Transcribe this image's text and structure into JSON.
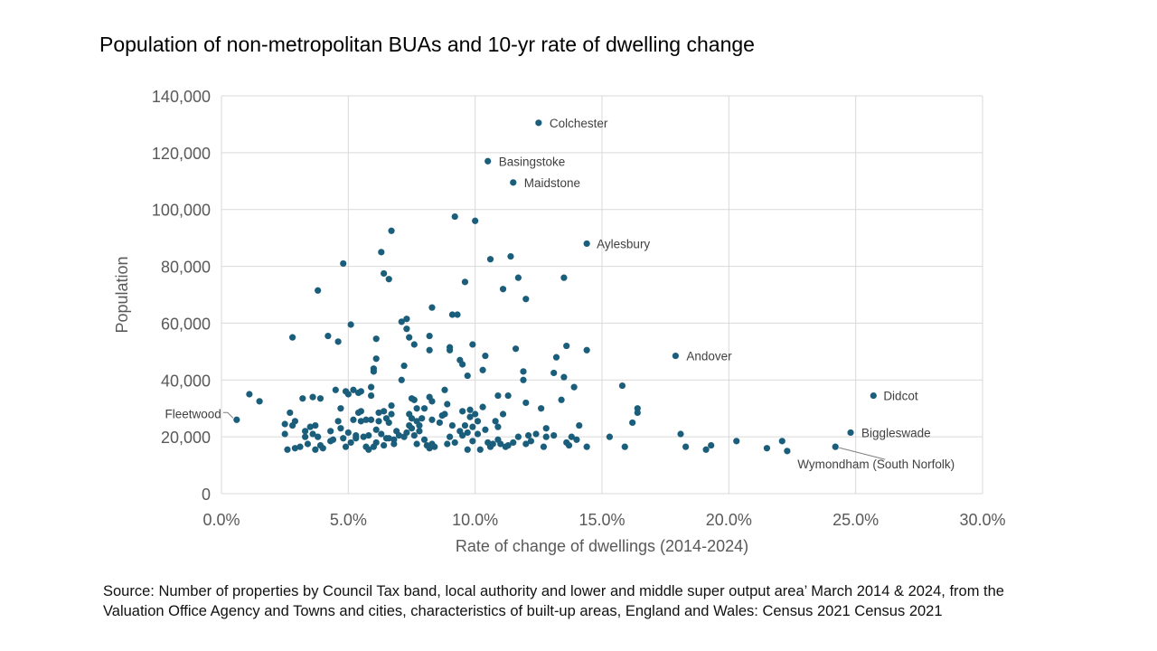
{
  "title": "Population of non-metropolitan BUAs and 10-yr rate of dwelling change",
  "source": "Source: Number of properties by Council Tax band, local authority and lower and middle super output area’ March 2014 & 2024, from the Valuation Office Agency and Towns and cities, characteristics of built-up areas, England and Wales: Census 2021  Census 2021",
  "colors": {
    "point": "#1b5e7b",
    "grid": "#d9d9d9",
    "axis_text": "#595959",
    "label_text": "#404040"
  },
  "chart_data": {
    "type": "scatter",
    "title": "Population of non-metropolitan BUAs and 10-yr rate of dwelling change",
    "xlabel": "Rate of change of dwellings (2014-2024)",
    "ylabel": "Population",
    "xlim": [
      0,
      0.3
    ],
    "ylim": [
      0,
      140000
    ],
    "x_ticks": [
      0,
      0.05,
      0.1,
      0.15,
      0.2,
      0.25,
      0.3
    ],
    "x_tick_labels": [
      "0.0%",
      "5.0%",
      "10.0%",
      "15.0%",
      "20.0%",
      "25.0%",
      "30.0%"
    ],
    "y_ticks": [
      0,
      20000,
      40000,
      60000,
      80000,
      100000,
      120000,
      140000
    ],
    "y_tick_labels": [
      "0",
      "20,000",
      "40,000",
      "60,000",
      "80,000",
      "100,000",
      "120,000",
      "140,000"
    ],
    "grid": true,
    "legend": "none",
    "labeled_points": [
      {
        "name": "Colchester",
        "x": 0.125,
        "y": 130500
      },
      {
        "name": "Basingstoke",
        "x": 0.105,
        "y": 117000
      },
      {
        "name": "Maidstone",
        "x": 0.115,
        "y": 109500
      },
      {
        "name": "Aylesbury",
        "x": 0.144,
        "y": 88000
      },
      {
        "name": "Andover",
        "x": 0.179,
        "y": 48500
      },
      {
        "name": "Didcot",
        "x": 0.257,
        "y": 34500
      },
      {
        "name": "Biggleswade",
        "x": 0.248,
        "y": 21500
      },
      {
        "name": "Wymondham (South Norfolk)",
        "x": 0.242,
        "y": 16500
      },
      {
        "name": "Fleetwood",
        "x": 0.006,
        "y": 26000
      }
    ],
    "points": [
      [
        0.011,
        35000
      ],
      [
        0.015,
        32500
      ],
      [
        0.025,
        24500
      ],
      [
        0.025,
        21000
      ],
      [
        0.026,
        15500
      ],
      [
        0.027,
        28500
      ],
      [
        0.028,
        55000
      ],
      [
        0.028,
        24000
      ],
      [
        0.029,
        16000
      ],
      [
        0.029,
        25500
      ],
      [
        0.031,
        16500
      ],
      [
        0.032,
        33500
      ],
      [
        0.033,
        22000
      ],
      [
        0.033,
        20000
      ],
      [
        0.034,
        17500
      ],
      [
        0.035,
        23500
      ],
      [
        0.036,
        34000
      ],
      [
        0.036,
        21000
      ],
      [
        0.037,
        15500
      ],
      [
        0.037,
        24000
      ],
      [
        0.038,
        71500
      ],
      [
        0.038,
        20000
      ],
      [
        0.039,
        33500
      ],
      [
        0.039,
        17000
      ],
      [
        0.04,
        16000
      ],
      [
        0.042,
        55500
      ],
      [
        0.043,
        22000
      ],
      [
        0.043,
        18500
      ],
      [
        0.044,
        19000
      ],
      [
        0.045,
        36500
      ],
      [
        0.046,
        53500
      ],
      [
        0.046,
        25500
      ],
      [
        0.047,
        23000
      ],
      [
        0.047,
        30000
      ],
      [
        0.048,
        81000
      ],
      [
        0.048,
        19500
      ],
      [
        0.049,
        36000
      ],
      [
        0.049,
        16500
      ],
      [
        0.05,
        35000
      ],
      [
        0.05,
        21500
      ],
      [
        0.051,
        59500
      ],
      [
        0.051,
        18000
      ],
      [
        0.052,
        36500
      ],
      [
        0.052,
        26000
      ],
      [
        0.053,
        20500
      ],
      [
        0.053,
        19500
      ],
      [
        0.054,
        35500
      ],
      [
        0.054,
        28500
      ],
      [
        0.055,
        36000
      ],
      [
        0.055,
        29000
      ],
      [
        0.055,
        25500
      ],
      [
        0.056,
        20000
      ],
      [
        0.057,
        16500
      ],
      [
        0.057,
        26000
      ],
      [
        0.058,
        20500
      ],
      [
        0.058,
        15500
      ],
      [
        0.059,
        37500
      ],
      [
        0.059,
        34500
      ],
      [
        0.059,
        26000
      ],
      [
        0.06,
        44000
      ],
      [
        0.06,
        43000
      ],
      [
        0.06,
        16500
      ],
      [
        0.061,
        54500
      ],
      [
        0.061,
        47500
      ],
      [
        0.061,
        22500
      ],
      [
        0.061,
        18000
      ],
      [
        0.062,
        28500
      ],
      [
        0.062,
        25500
      ],
      [
        0.063,
        85000
      ],
      [
        0.063,
        21000
      ],
      [
        0.064,
        77500
      ],
      [
        0.064,
        29000
      ],
      [
        0.064,
        17000
      ],
      [
        0.065,
        26500
      ],
      [
        0.065,
        19500
      ],
      [
        0.066,
        75500
      ],
      [
        0.066,
        25000
      ],
      [
        0.066,
        19500
      ],
      [
        0.067,
        92500
      ],
      [
        0.067,
        31000
      ],
      [
        0.067,
        28000
      ],
      [
        0.068,
        19000
      ],
      [
        0.068,
        17500
      ],
      [
        0.069,
        22000
      ],
      [
        0.07,
        20500
      ],
      [
        0.071,
        60500
      ],
      [
        0.071,
        40000
      ],
      [
        0.072,
        45000
      ],
      [
        0.072,
        20000
      ],
      [
        0.073,
        61500
      ],
      [
        0.073,
        58000
      ],
      [
        0.073,
        21500
      ],
      [
        0.074,
        55000
      ],
      [
        0.074,
        28000
      ],
      [
        0.074,
        24000
      ],
      [
        0.075,
        33500
      ],
      [
        0.075,
        26500
      ],
      [
        0.075,
        23000
      ],
      [
        0.076,
        52500
      ],
      [
        0.076,
        33000
      ],
      [
        0.076,
        20500
      ],
      [
        0.077,
        30000
      ],
      [
        0.077,
        25500
      ],
      [
        0.077,
        17500
      ],
      [
        0.078,
        24000
      ],
      [
        0.078,
        22000
      ],
      [
        0.079,
        26500
      ],
      [
        0.08,
        30000
      ],
      [
        0.08,
        19000
      ],
      [
        0.081,
        17000
      ],
      [
        0.082,
        55500
      ],
      [
        0.082,
        50500
      ],
      [
        0.082,
        34000
      ],
      [
        0.082,
        16000
      ],
      [
        0.083,
        65500
      ],
      [
        0.083,
        26000
      ],
      [
        0.083,
        32500
      ],
      [
        0.083,
        17500
      ],
      [
        0.084,
        16500
      ],
      [
        0.086,
        25000
      ],
      [
        0.087,
        27500
      ],
      [
        0.088,
        36500
      ],
      [
        0.088,
        28000
      ],
      [
        0.089,
        31500
      ],
      [
        0.089,
        17500
      ],
      [
        0.09,
        50500
      ],
      [
        0.09,
        51500
      ],
      [
        0.09,
        20000
      ],
      [
        0.091,
        63000
      ],
      [
        0.091,
        24000
      ],
      [
        0.092,
        97500
      ],
      [
        0.092,
        18000
      ],
      [
        0.093,
        63000
      ],
      [
        0.094,
        22000
      ],
      [
        0.094,
        47000
      ],
      [
        0.095,
        45500
      ],
      [
        0.095,
        29000
      ],
      [
        0.095,
        20500
      ],
      [
        0.096,
        74500
      ],
      [
        0.096,
        24000
      ],
      [
        0.097,
        41500
      ],
      [
        0.097,
        21500
      ],
      [
        0.097,
        15500
      ],
      [
        0.098,
        29500
      ],
      [
        0.098,
        27000
      ],
      [
        0.099,
        52500
      ],
      [
        0.099,
        23500
      ],
      [
        0.099,
        18500
      ],
      [
        0.1,
        96000
      ],
      [
        0.1,
        28000
      ],
      [
        0.101,
        25500
      ],
      [
        0.101,
        21000
      ],
      [
        0.102,
        15500
      ],
      [
        0.103,
        43500
      ],
      [
        0.103,
        30500
      ],
      [
        0.104,
        48500
      ],
      [
        0.104,
        22500
      ],
      [
        0.105,
        18000
      ],
      [
        0.106,
        82500
      ],
      [
        0.106,
        16500
      ],
      [
        0.107,
        17500
      ],
      [
        0.108,
        25500
      ],
      [
        0.109,
        34500
      ],
      [
        0.109,
        23500
      ],
      [
        0.109,
        19000
      ],
      [
        0.11,
        17500
      ],
      [
        0.111,
        72000
      ],
      [
        0.111,
        28000
      ],
      [
        0.112,
        16500
      ],
      [
        0.113,
        34500
      ],
      [
        0.113,
        17000
      ],
      [
        0.114,
        83500
      ],
      [
        0.115,
        18000
      ],
      [
        0.116,
        51000
      ],
      [
        0.117,
        20000
      ],
      [
        0.117,
        76000
      ],
      [
        0.119,
        43000
      ],
      [
        0.119,
        40000
      ],
      [
        0.12,
        68500
      ],
      [
        0.12,
        32000
      ],
      [
        0.12,
        17500
      ],
      [
        0.121,
        20500
      ],
      [
        0.122,
        18500
      ],
      [
        0.124,
        21000
      ],
      [
        0.126,
        30000
      ],
      [
        0.127,
        16500
      ],
      [
        0.128,
        23000
      ],
      [
        0.128,
        20000
      ],
      [
        0.131,
        42500
      ],
      [
        0.131,
        20500
      ],
      [
        0.132,
        48000
      ],
      [
        0.134,
        33000
      ],
      [
        0.135,
        76000
      ],
      [
        0.135,
        41000
      ],
      [
        0.136,
        52000
      ],
      [
        0.136,
        18000
      ],
      [
        0.137,
        17000
      ],
      [
        0.138,
        20000
      ],
      [
        0.139,
        37500
      ],
      [
        0.14,
        19000
      ],
      [
        0.141,
        24000
      ],
      [
        0.144,
        50500
      ],
      [
        0.144,
        16500
      ],
      [
        0.153,
        20000
      ],
      [
        0.158,
        38000
      ],
      [
        0.159,
        16500
      ],
      [
        0.162,
        25000
      ],
      [
        0.164,
        30000
      ],
      [
        0.164,
        28500
      ],
      [
        0.181,
        21000
      ],
      [
        0.183,
        16500
      ],
      [
        0.191,
        15500
      ],
      [
        0.193,
        17000
      ],
      [
        0.203,
        18500
      ],
      [
        0.215,
        16000
      ],
      [
        0.221,
        18500
      ],
      [
        0.223,
        15000
      ]
    ]
  }
}
